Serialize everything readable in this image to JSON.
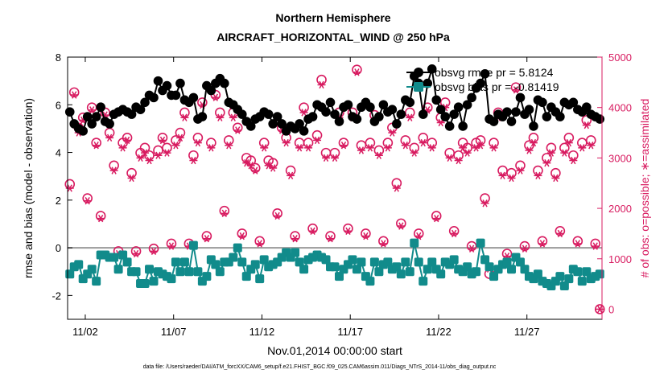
{
  "chart_data": {
    "type": "line",
    "title": "Northern Hemisphere",
    "subtitle": "AIRCRAFT_HORIZONTAL_WIND @ 250 hPa",
    "xlabel": "Nov.01,2014 00:00:00 start",
    "ylabel_left": "rmse and bias (model - observation)",
    "ylabel_right": "# of obs: o=possible; ∗=assimilated",
    "footnote": "data file: /Users/raeder/DAI/ATM_forcXX/CAM6_setup/f.e21.FHIST_BGC.f09_025.CAM6assim.011/Diags_NTrS_2014-11/obs_diag_output.nc",
    "xlim": [
      1.0,
      31.25
    ],
    "ylim_left": [
      -3,
      8
    ],
    "ylim_right": [
      -200,
      5000
    ],
    "x_ticks": [
      2,
      7,
      12,
      17,
      22,
      27
    ],
    "x_tick_labels": [
      "11/02",
      "11/07",
      "11/12",
      "11/17",
      "11/22",
      "11/27"
    ],
    "y_ticks_left": [
      -2,
      0,
      2,
      4,
      6,
      8
    ],
    "y_tick_labels_left": [
      "-2",
      "0",
      "2",
      "4",
      "6",
      "8"
    ],
    "y_ticks_right": [
      0,
      1000,
      2000,
      3000,
      4000,
      5000
    ],
    "y_tick_labels_right": [
      "0",
      "1000",
      "2000",
      "3000",
      "4000",
      "5000"
    ],
    "zero_line": 0,
    "legend_position": "top-right",
    "colors": {
      "rmse": "#000000",
      "bias": "#118b8b",
      "obs": "#d81b60",
      "zero": "#9a9a9a"
    },
    "series": [
      {
        "name": "obsvg rmse pr = 5.8124",
        "axis": "left",
        "x": [
          1.125,
          1.375,
          1.625,
          1.875,
          2.125,
          2.375,
          2.625,
          2.875,
          3.125,
          3.375,
          3.625,
          3.875,
          4.125,
          4.375,
          4.625,
          4.875,
          5.125,
          5.375,
          5.625,
          5.875,
          6.125,
          6.375,
          6.625,
          6.875,
          7.125,
          7.375,
          7.625,
          7.875,
          8.125,
          8.375,
          8.625,
          8.875,
          9.125,
          9.375,
          9.625,
          9.875,
          10.125,
          10.375,
          10.625,
          10.875,
          11.125,
          11.375,
          11.625,
          11.875,
          12.125,
          12.375,
          12.625,
          12.875,
          13.125,
          13.375,
          13.625,
          13.875,
          14.125,
          14.375,
          14.625,
          14.875,
          15.125,
          15.375,
          15.625,
          15.875,
          16.125,
          16.375,
          16.625,
          16.875,
          17.125,
          17.375,
          17.625,
          17.875,
          18.125,
          18.375,
          18.625,
          18.875,
          19.125,
          19.375,
          19.625,
          19.875,
          20.125,
          20.375,
          20.625,
          20.875,
          21.125,
          21.375,
          21.625,
          21.875,
          22.125,
          22.375,
          22.625,
          22.875,
          23.125,
          23.375,
          23.625,
          23.875,
          24.125,
          24.375,
          24.625,
          24.875,
          25.125,
          25.375,
          25.625,
          25.875,
          26.125,
          26.375,
          26.625,
          26.875,
          27.125,
          27.375,
          27.625,
          27.875,
          28.125,
          28.375,
          28.625,
          28.875,
          29.125,
          29.375,
          29.625,
          29.875,
          30.125,
          30.375,
          30.625,
          30.875,
          31.125
        ],
        "y": [
          5.7,
          5.2,
          5.0,
          4.9,
          5.5,
          5.2,
          5.5,
          5.9,
          5.3,
          5.2,
          5.6,
          5.7,
          5.8,
          5.7,
          5.6,
          5.9,
          5.8,
          6.1,
          6.4,
          6.3,
          7.0,
          6.6,
          6.8,
          6.4,
          6.4,
          6.9,
          6.2,
          6.1,
          6.3,
          5.4,
          5.5,
          6.8,
          6.6,
          6.9,
          7.1,
          6.9,
          6.1,
          6.0,
          5.8,
          5.6,
          5.3,
          5.1,
          5.4,
          5.5,
          5.7,
          5.6,
          5.2,
          5.5,
          5.2,
          4.9,
          5.1,
          5.0,
          5.2,
          4.9,
          5.4,
          5.5,
          6.0,
          5.9,
          5.7,
          6.1,
          5.6,
          5.3,
          5.9,
          6.0,
          5.5,
          5.4,
          5.9,
          6.1,
          5.9,
          5.3,
          5.5,
          6.0,
          5.7,
          5.8,
          5.2,
          5.6,
          6.2,
          6.1,
          7.2,
          6.9,
          5.6,
          6.9,
          7.5,
          6.2,
          5.8,
          5.5,
          5.1,
          5.6,
          5.9,
          5.1,
          6.0,
          6.3,
          6.7,
          6.9,
          7.3,
          5.4,
          5.3,
          5.6,
          5.5,
          5.7,
          5.3,
          5.7,
          6.3,
          5.6,
          5.8,
          5.1,
          6.2,
          6.1,
          5.5,
          5.9,
          5.7,
          5.5,
          6.1,
          6.0,
          6.1,
          5.8,
          5.7,
          5.9,
          5.6,
          5.5,
          5.4
        ]
      },
      {
        "name": "obsvg bias pr = -0.81419",
        "axis": "left",
        "x": [
          1.125,
          1.375,
          1.625,
          1.875,
          2.125,
          2.375,
          2.625,
          2.875,
          3.125,
          3.375,
          3.625,
          3.875,
          4.125,
          4.375,
          4.625,
          4.875,
          5.125,
          5.375,
          5.625,
          5.875,
          6.125,
          6.375,
          6.625,
          6.875,
          7.125,
          7.375,
          7.625,
          7.875,
          8.125,
          8.375,
          8.625,
          8.875,
          9.125,
          9.375,
          9.625,
          9.875,
          10.125,
          10.375,
          10.625,
          10.875,
          11.125,
          11.375,
          11.625,
          11.875,
          12.125,
          12.375,
          12.625,
          12.875,
          13.125,
          13.375,
          13.625,
          13.875,
          14.125,
          14.375,
          14.625,
          14.875,
          15.125,
          15.375,
          15.625,
          15.875,
          16.125,
          16.375,
          16.625,
          16.875,
          17.125,
          17.375,
          17.625,
          17.875,
          18.125,
          18.375,
          18.625,
          18.875,
          19.125,
          19.375,
          19.625,
          19.875,
          20.125,
          20.375,
          20.625,
          20.875,
          21.125,
          21.375,
          21.625,
          21.875,
          22.125,
          22.375,
          22.625,
          22.875,
          23.125,
          23.375,
          23.625,
          23.875,
          24.125,
          24.375,
          24.625,
          24.875,
          25.125,
          25.375,
          25.625,
          25.875,
          26.125,
          26.375,
          26.625,
          26.875,
          27.125,
          27.375,
          27.625,
          27.875,
          28.125,
          28.375,
          28.625,
          28.875,
          29.125,
          29.375,
          29.625,
          29.875,
          30.125,
          30.375,
          30.625,
          30.875,
          31.125
        ],
        "y": [
          -1.1,
          -0.8,
          -0.7,
          -1.3,
          -1.1,
          -0.9,
          -1.4,
          -0.3,
          -0.3,
          -0.4,
          -0.4,
          -0.9,
          -0.3,
          -0.6,
          -1.0,
          -1.0,
          -1.5,
          -1.5,
          -0.9,
          -1.4,
          -1.0,
          -1.1,
          -1.2,
          -1.3,
          -0.6,
          -1.0,
          -0.6,
          -1.0,
          0.1,
          -1.0,
          -1.4,
          -1.2,
          -0.5,
          -0.7,
          -1.0,
          -0.6,
          -0.6,
          -0.4,
          0.0,
          -0.6,
          -1.2,
          -0.9,
          -0.7,
          -1.3,
          -0.5,
          -0.8,
          -0.7,
          -0.6,
          -0.4,
          -0.2,
          -0.4,
          -0.2,
          -0.6,
          -0.9,
          -0.5,
          -0.4,
          -0.3,
          -0.4,
          -0.5,
          -0.8,
          -0.8,
          -1.2,
          -0.9,
          -0.7,
          -0.5,
          -0.9,
          -0.6,
          -1.2,
          -1.4,
          -0.6,
          -1.0,
          -0.7,
          -0.6,
          -0.9,
          -0.8,
          -1.1,
          -0.6,
          -1.0,
          0.2,
          -0.6,
          -1.4,
          -0.9,
          -0.6,
          -0.9,
          -1.1,
          -0.6,
          -0.7,
          -0.5,
          -0.9,
          -1.0,
          -0.8,
          -1.1,
          -1.0,
          0.2,
          -0.5,
          -0.8,
          -1.2,
          -0.9,
          -0.7,
          -0.6,
          -0.9,
          -0.4,
          -0.6,
          -0.9,
          -1.2,
          -1.3,
          -1.1,
          -1.4,
          -1.5,
          -1.6,
          -1.4,
          -1.2,
          -1.6,
          -1.3,
          -0.9,
          -1.0,
          -1.4,
          -1.0,
          -1.3,
          -1.2,
          -1.1
        ]
      },
      {
        "name": "obs possible",
        "axis": "right",
        "marker": "o",
        "x": [
          1.125,
          1.375,
          1.625,
          1.875,
          2.125,
          2.375,
          2.625,
          2.875,
          3.125,
          3.375,
          3.625,
          3.875,
          4.125,
          4.375,
          4.625,
          4.875,
          5.125,
          5.375,
          5.625,
          5.875,
          6.125,
          6.375,
          6.625,
          6.875,
          7.125,
          7.375,
          7.625,
          7.875,
          8.125,
          8.375,
          8.625,
          8.875,
          9.125,
          9.375,
          9.625,
          9.875,
          10.125,
          10.375,
          10.625,
          10.875,
          11.125,
          11.375,
          11.625,
          11.875,
          12.125,
          12.375,
          12.625,
          12.875,
          13.125,
          13.375,
          13.625,
          13.875,
          14.125,
          14.375,
          14.625,
          14.875,
          15.125,
          15.375,
          15.625,
          15.875,
          16.125,
          16.375,
          16.625,
          16.875,
          17.125,
          17.375,
          17.625,
          17.875,
          18.125,
          18.375,
          18.625,
          18.875,
          19.125,
          19.375,
          19.625,
          19.875,
          20.125,
          20.375,
          20.625,
          20.875,
          21.125,
          21.375,
          21.625,
          21.875,
          22.125,
          22.375,
          22.625,
          22.875,
          23.125,
          23.375,
          23.625,
          23.875,
          24.125,
          24.375,
          24.625,
          24.875,
          25.125,
          25.375,
          25.625,
          25.875,
          26.125,
          26.375,
          26.625,
          26.875,
          27.125,
          27.375,
          27.625,
          27.875,
          28.125,
          28.375,
          28.625,
          28.875,
          29.125,
          29.375,
          29.625,
          29.875,
          30.125,
          30.375,
          30.625,
          30.875,
          31.125
        ],
        "y": [
          2480,
          4300,
          3600,
          3800,
          2200,
          4000,
          3300,
          1850,
          3900,
          3500,
          2850,
          1150,
          3300,
          3400,
          2700,
          1150,
          3100,
          3200,
          3050,
          1200,
          3150,
          3400,
          3200,
          1300,
          3350,
          3500,
          3900,
          1300,
          3050,
          3400,
          4100,
          1450,
          3300,
          4250,
          3900,
          1950,
          3350,
          3900,
          3600,
          1500,
          3000,
          2950,
          2800,
          1350,
          3300,
          2950,
          2900,
          1900,
          3600,
          3400,
          2750,
          1450,
          3300,
          4000,
          3300,
          1600,
          3450,
          4550,
          3100,
          1450,
          3100,
          3900,
          3300,
          1600,
          3900,
          4750,
          3250,
          1500,
          3300,
          3850,
          3150,
          1350,
          3300,
          3600,
          2500,
          1700,
          3350,
          3900,
          3200,
          1500,
          3400,
          4000,
          3300,
          1850,
          3800,
          4100,
          3100,
          1550,
          3050,
          3300,
          3200,
          1250,
          3300,
          3350,
          2200,
          700,
          3300,
          3900,
          2750,
          1100,
          2700,
          4400,
          2850,
          1250,
          3250,
          3400,
          2750,
          1350,
          3000,
          3200,
          2700,
          1550,
          3200,
          3400,
          3050,
          1350,
          3300,
          3750,
          3350,
          1300,
          0
        ]
      },
      {
        "name": "obs assimilated",
        "axis": "right",
        "marker": "*",
        "x": [
          1.125,
          1.375,
          1.625,
          1.875,
          2.125,
          2.375,
          2.625,
          2.875,
          3.125,
          3.375,
          3.625,
          3.875,
          4.125,
          4.375,
          4.625,
          4.875,
          5.125,
          5.375,
          5.625,
          5.875,
          6.125,
          6.375,
          6.625,
          6.875,
          7.125,
          7.375,
          7.625,
          7.875,
          8.125,
          8.375,
          8.625,
          8.875,
          9.125,
          9.375,
          9.625,
          9.875,
          10.125,
          10.375,
          10.625,
          10.875,
          11.125,
          11.375,
          11.625,
          11.875,
          12.125,
          12.375,
          12.625,
          12.875,
          13.125,
          13.375,
          13.625,
          13.875,
          14.125,
          14.375,
          14.625,
          14.875,
          15.125,
          15.375,
          15.625,
          15.875,
          16.125,
          16.375,
          16.625,
          16.875,
          17.125,
          17.375,
          17.625,
          17.875,
          18.125,
          18.375,
          18.625,
          18.875,
          19.125,
          19.375,
          19.625,
          19.875,
          20.125,
          20.375,
          20.625,
          20.875,
          21.125,
          21.375,
          21.625,
          21.875,
          22.125,
          22.375,
          22.625,
          22.875,
          23.125,
          23.375,
          23.625,
          23.875,
          24.125,
          24.375,
          24.625,
          24.875,
          25.125,
          25.375,
          25.625,
          25.875,
          26.125,
          26.375,
          26.625,
          26.875,
          27.125,
          27.375,
          27.625,
          27.875,
          28.125,
          28.375,
          28.625,
          28.875,
          29.125,
          29.375,
          29.625,
          29.875,
          30.125,
          30.375,
          30.625,
          30.875,
          31.125
        ],
        "y": [
          2400,
          4250,
          3500,
          3750,
          2150,
          3950,
          3250,
          1800,
          3850,
          3400,
          2750,
          1100,
          3200,
          3350,
          2600,
          1100,
          3000,
          3100,
          2950,
          1150,
          3050,
          3350,
          3100,
          1250,
          3250,
          3400,
          3800,
          1250,
          2950,
          3300,
          4050,
          1400,
          3200,
          4200,
          3800,
          1900,
          3250,
          3800,
          3550,
          1450,
          2900,
          2850,
          2750,
          1300,
          3200,
          2850,
          2800,
          1850,
          3550,
          3300,
          2650,
          1400,
          3200,
          3900,
          3200,
          1550,
          3350,
          4450,
          3000,
          1400,
          3000,
          3800,
          3250,
          1550,
          3800,
          4700,
          3150,
          1450,
          3200,
          3750,
          3050,
          1300,
          3200,
          3500,
          2400,
          1650,
          3250,
          3800,
          3100,
          1450,
          3300,
          3950,
          3200,
          1800,
          3700,
          4000,
          3000,
          1500,
          2950,
          3200,
          3100,
          1200,
          3200,
          3250,
          2100,
          800,
          3200,
          3800,
          2650,
          1050,
          2600,
          4350,
          2750,
          1200,
          3150,
          3300,
          2650,
          1300,
          2900,
          3100,
          2600,
          1500,
          3100,
          3300,
          2950,
          1300,
          3200,
          3650,
          3250,
          1250,
          0
        ]
      }
    ]
  }
}
